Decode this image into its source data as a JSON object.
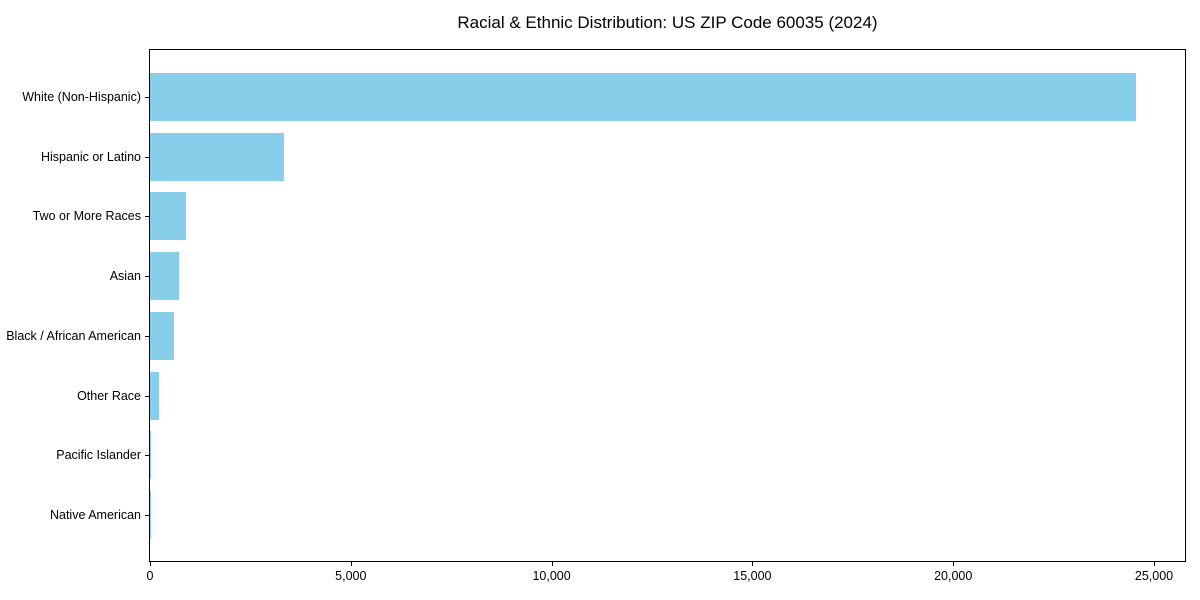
{
  "chart_data": {
    "type": "bar",
    "orientation": "horizontal",
    "title": "Racial & Ethnic Distribution: US ZIP Code 60035 (2024)",
    "categories": [
      "White (Non-Hispanic)",
      "Hispanic or Latino",
      "Two or More Races",
      "Asian",
      "Black / African American",
      "Other Race",
      "Pacific Islander",
      "Native American"
    ],
    "values": [
      24560,
      3330,
      905,
      715,
      595,
      220,
      20,
      5
    ],
    "x_ticks": [
      0,
      5000,
      10000,
      15000,
      20000,
      25000
    ],
    "x_tick_labels": [
      "0",
      "5,000",
      "10,000",
      "15,000",
      "20,000",
      "25,000"
    ],
    "xlim": [
      0,
      25770
    ],
    "xlabel": "",
    "ylabel": "",
    "grid": false,
    "legend": null,
    "bar_color": "#87CEEB",
    "frame_color": "#000000",
    "text_color": "#000000",
    "background_color": "#ffffff"
  }
}
